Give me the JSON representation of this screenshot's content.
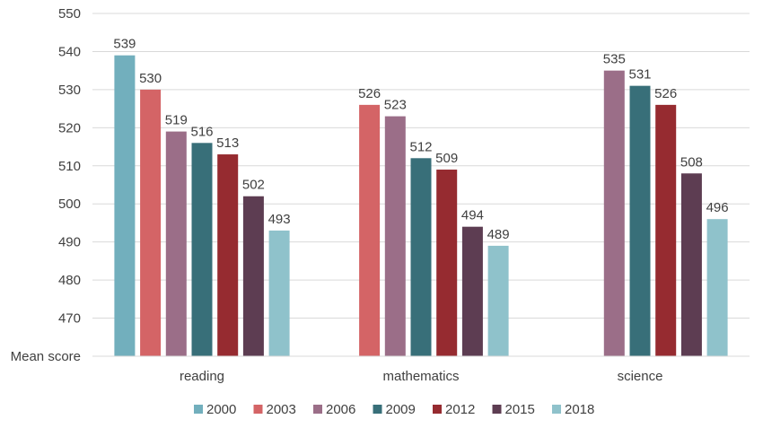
{
  "chart_data": {
    "type": "bar",
    "ylabel": "Mean score",
    "ylim": [
      460,
      550
    ],
    "ytick_step": 10,
    "yticks": [
      "470",
      "480",
      "490",
      "500",
      "510",
      "520",
      "530",
      "540",
      "550"
    ],
    "grid": true,
    "legend_position": "bottom",
    "categories": [
      "reading",
      "mathematics",
      "science"
    ],
    "series": [
      {
        "name": "2000",
        "color": "#72AFBD",
        "values": [
          539,
          null,
          null
        ]
      },
      {
        "name": "2003",
        "color": "#D46466",
        "values": [
          530,
          526,
          null
        ]
      },
      {
        "name": "2006",
        "color": "#9B6E88",
        "values": [
          519,
          523,
          535
        ]
      },
      {
        "name": "2009",
        "color": "#386F79",
        "values": [
          516,
          512,
          531
        ]
      },
      {
        "name": "2012",
        "color": "#962B30",
        "values": [
          513,
          509,
          526
        ]
      },
      {
        "name": "2015",
        "color": "#5D3D52",
        "values": [
          502,
          494,
          508
        ]
      },
      {
        "name": "2018",
        "color": "#8FC2CB",
        "values": [
          493,
          489,
          496
        ]
      }
    ]
  }
}
